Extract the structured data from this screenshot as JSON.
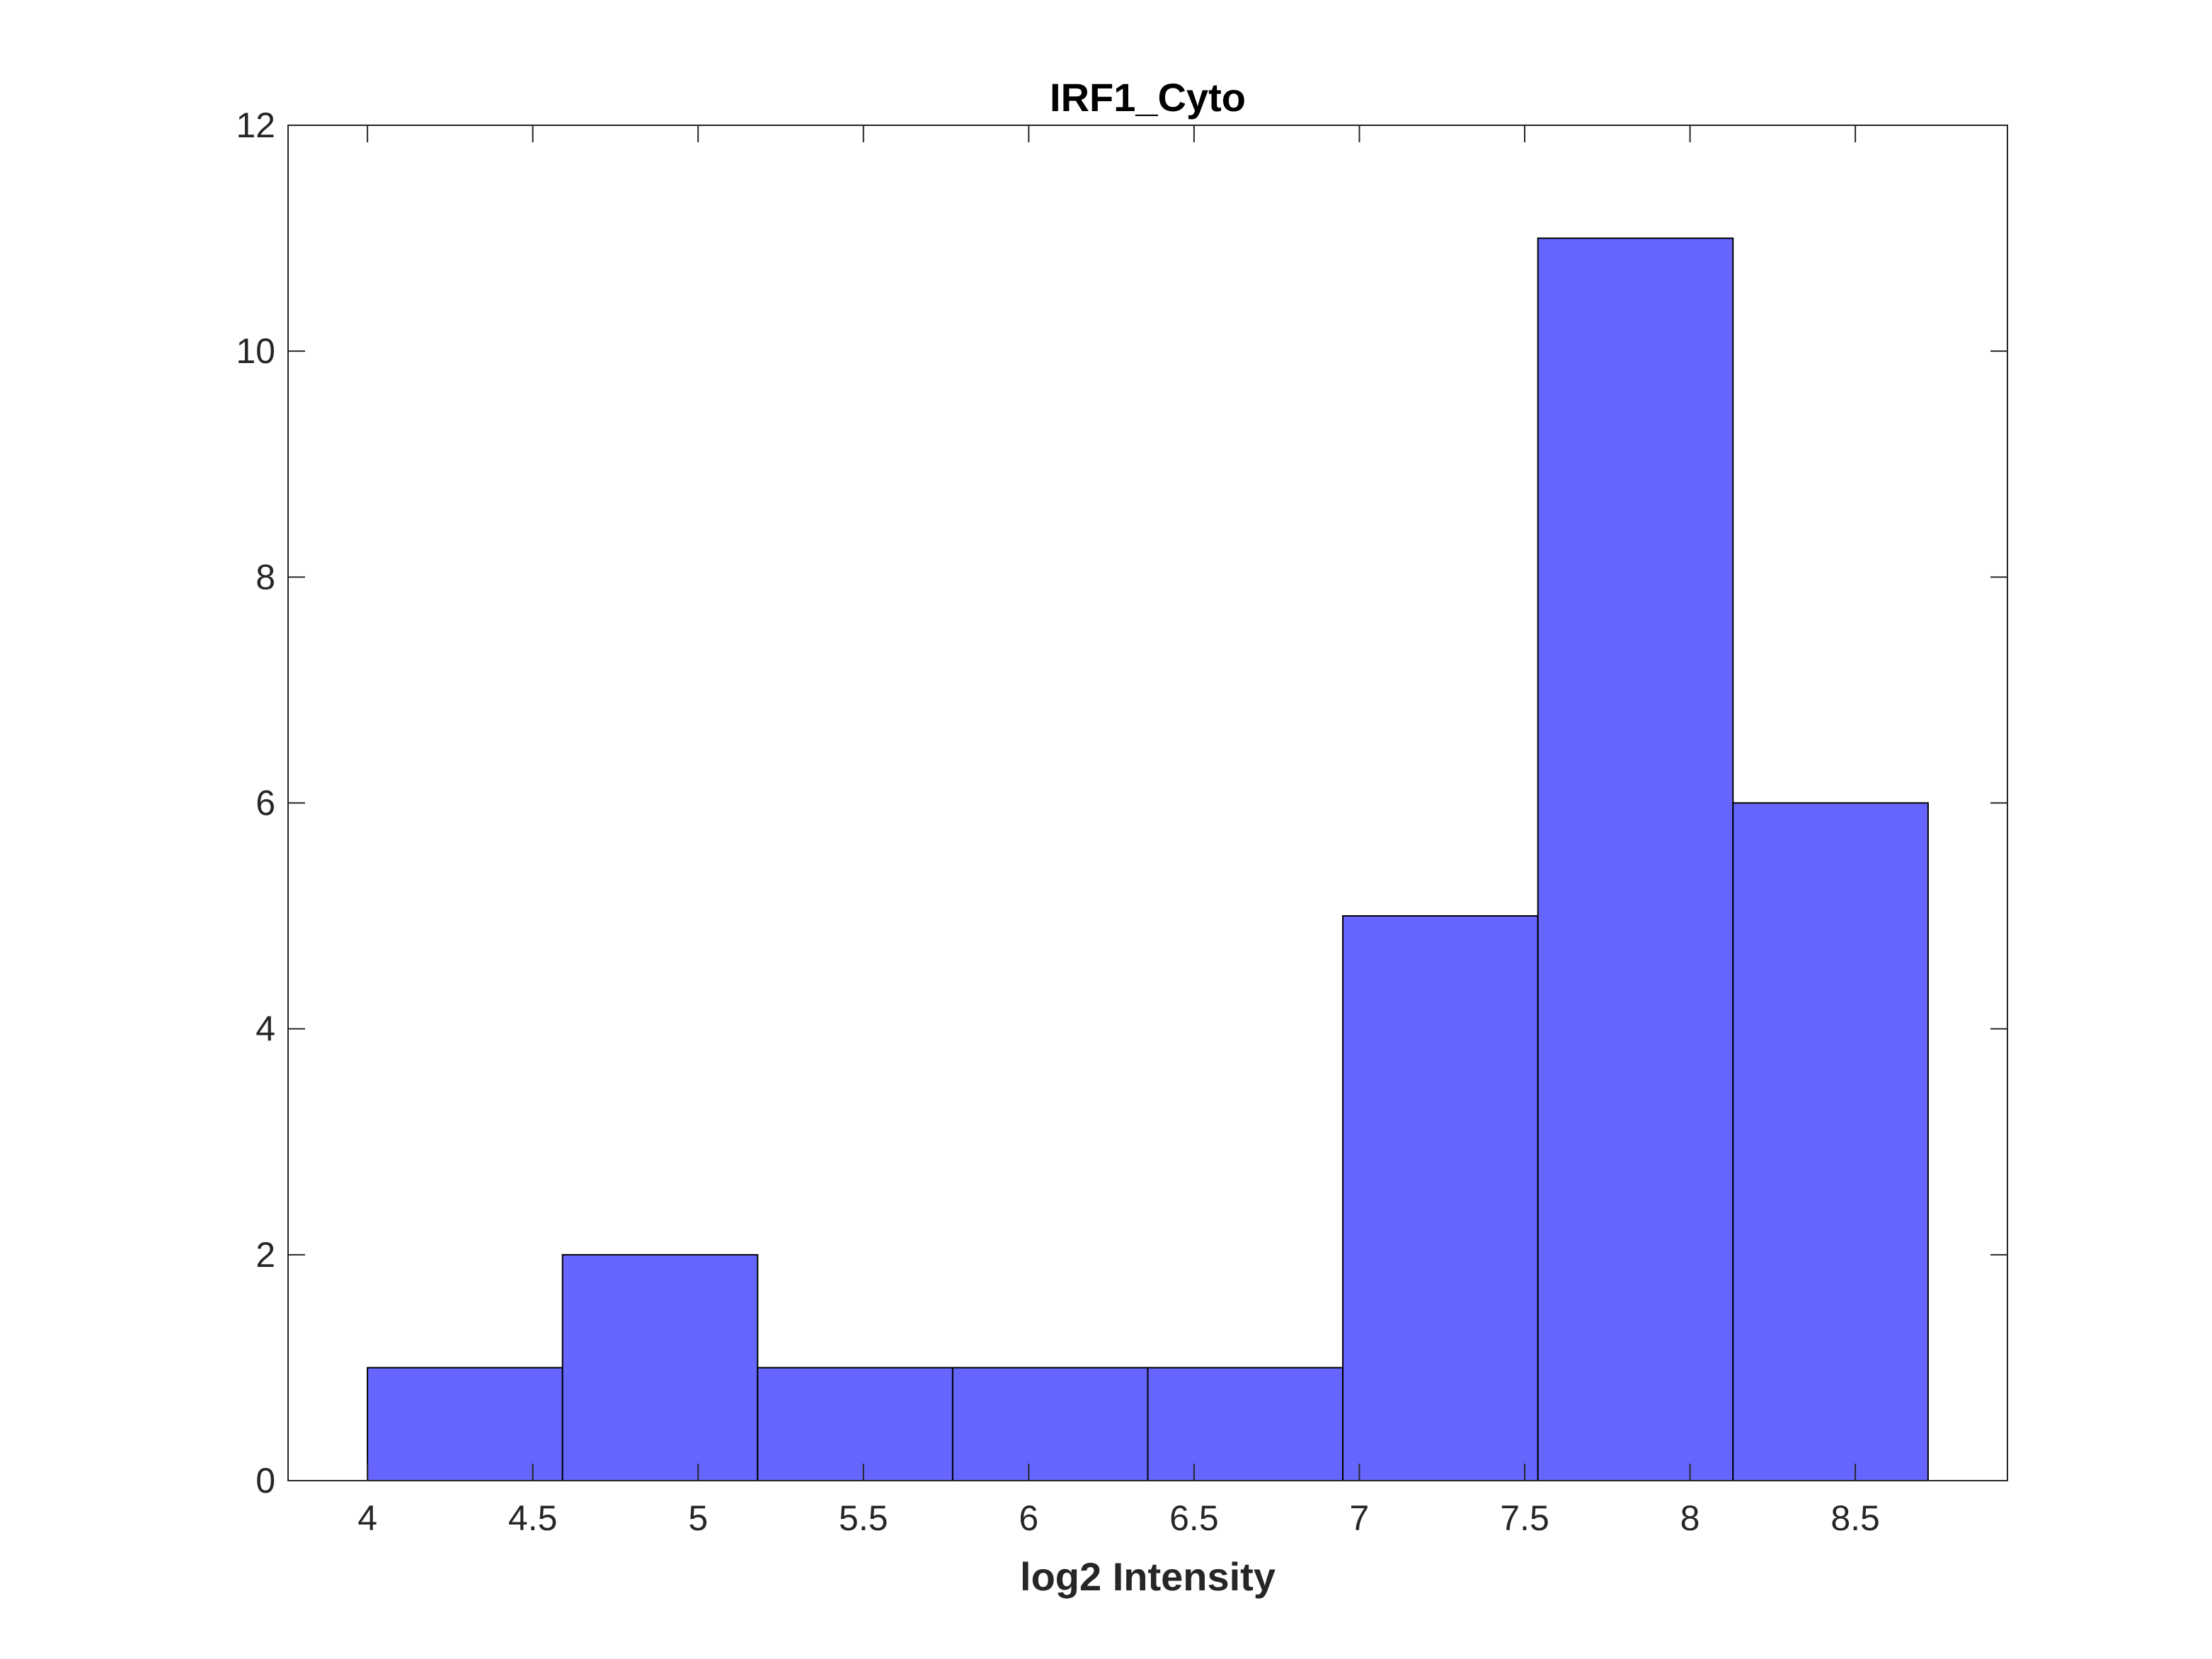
{
  "chart_data": {
    "type": "bar",
    "title": "IRF1_Cyto",
    "xlabel": "log2 Intensity",
    "ylabel": "",
    "xlim": [
      3.76,
      8.96
    ],
    "ylim": [
      0,
      12
    ],
    "bin_edges": [
      4.0,
      4.59,
      5.18,
      5.77,
      6.36,
      6.95,
      7.54,
      8.13,
      8.72
    ],
    "values": [
      1,
      2,
      1,
      1,
      1,
      5,
      11,
      6
    ],
    "x_ticks": [
      4,
      4.5,
      5,
      5.5,
      6,
      6.5,
      7,
      7.5,
      8,
      8.5
    ],
    "x_tick_labels": [
      "4",
      "4.5",
      "5",
      "5.5",
      "6",
      "6.5",
      "7",
      "7.5",
      "8",
      "8.5"
    ],
    "y_ticks": [
      0,
      2,
      4,
      6,
      8,
      10,
      12
    ],
    "y_tick_labels": [
      "0",
      "2",
      "4",
      "6",
      "8",
      "10",
      "12"
    ],
    "grid": false,
    "bar_color": "#6666ff",
    "bar_edge_color": "#000000"
  }
}
